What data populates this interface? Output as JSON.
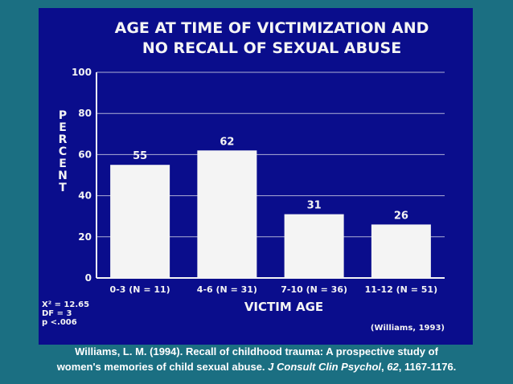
{
  "colors": {
    "background": "#1b6f82",
    "panel": "#0a0d8c",
    "ink": "#f4f4f4",
    "bar": "#f4f4f4"
  },
  "chart_data": {
    "type": "bar",
    "title_lines": [
      "AGE AT TIME OF VICTIMIZATION AND",
      "NO RECALL OF SEXUAL ABUSE"
    ],
    "categories": [
      "0-3 (N = 11)",
      "4-6 (N = 31)",
      "7-10 (N = 36)",
      "11-12 (N = 51)"
    ],
    "values": [
      55,
      62,
      31,
      26
    ],
    "value_labels": [
      "55",
      "62",
      "31",
      "26"
    ],
    "xlabel": "VICTIM AGE",
    "ylabel": "PERCENT",
    "ylim": [
      0,
      100
    ],
    "yticks": [
      0,
      20,
      40,
      60,
      80,
      100
    ],
    "grid": true,
    "stats": [
      "X² = 12.65",
      "DF = 3",
      "p <.006"
    ],
    "source": "(Williams, 1993)"
  },
  "citation": {
    "line1": "Williams, L. M. (1994). Recall of childhood trauma:  A prospective study of",
    "line2_start": "women's memories of child sexual abuse. ",
    "journal": "J Consult Clin Psychol",
    "comma": ", ",
    "volume": "62",
    "pages": ", 1167-1176."
  }
}
